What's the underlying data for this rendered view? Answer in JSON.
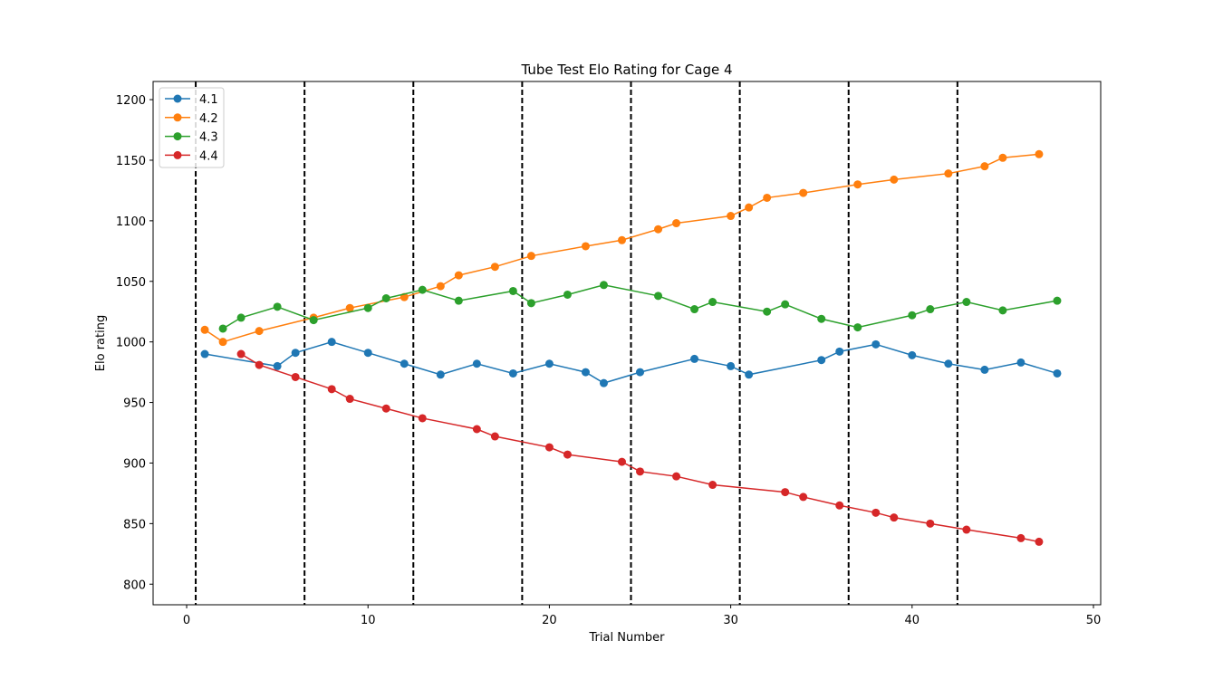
{
  "chart_data": {
    "type": "line",
    "title": "Tube Test Elo Rating for  Cage 4",
    "xlabel": "Trial Number",
    "ylabel": "Elo rating",
    "xlim": [
      -1.85,
      50.4
    ],
    "ylim": [
      783,
      1215
    ],
    "xticks": [
      0,
      10,
      20,
      30,
      40,
      50
    ],
    "yticks": [
      800,
      850,
      900,
      950,
      1000,
      1050,
      1100,
      1150,
      1200
    ],
    "grid": false,
    "legend_position": "top-left",
    "vlines": [
      0.5,
      6.5,
      12.5,
      18.5,
      24.5,
      30.5,
      36.5,
      42.5
    ],
    "series": [
      {
        "name": "4.1",
        "color": "#1f77b4",
        "x": [
          1,
          5,
          6,
          8,
          10,
          12,
          14,
          16,
          18,
          20,
          22,
          23,
          25,
          28,
          30,
          31,
          35,
          36,
          38,
          40,
          42,
          44,
          46,
          48
        ],
        "y": [
          990,
          980,
          991,
          1000,
          991,
          982,
          973,
          982,
          974,
          982,
          975,
          966,
          975,
          986,
          980,
          973,
          985,
          992,
          998,
          989,
          982,
          977,
          983,
          974
        ]
      },
      {
        "name": "4.2",
        "color": "#ff7f0e",
        "x": [
          1,
          2,
          4,
          7,
          9,
          12,
          14,
          15,
          17,
          19,
          22,
          24,
          26,
          27,
          30,
          31,
          32,
          34,
          37,
          39,
          42,
          44,
          45,
          47
        ],
        "y": [
          1010,
          1000,
          1009,
          1020,
          1028,
          1037,
          1046,
          1055,
          1062,
          1071,
          1079,
          1084,
          1093,
          1098,
          1104,
          1111,
          1119,
          1123,
          1130,
          1134,
          1139,
          1145,
          1152,
          1155
        ]
      },
      {
        "name": "4.3",
        "color": "#2ca02c",
        "x": [
          2,
          3,
          5,
          7,
          10,
          11,
          13,
          15,
          18,
          19,
          21,
          23,
          26,
          28,
          29,
          32,
          33,
          35,
          37,
          40,
          41,
          43,
          45,
          48
        ],
        "y": [
          1011,
          1020,
          1029,
          1018,
          1028,
          1036,
          1043,
          1034,
          1042,
          1032,
          1039,
          1047,
          1038,
          1027,
          1033,
          1025,
          1031,
          1019,
          1012,
          1022,
          1027,
          1033,
          1026,
          1034
        ]
      },
      {
        "name": "4.4",
        "color": "#d62728",
        "x": [
          3,
          4,
          6,
          8,
          9,
          11,
          13,
          16,
          17,
          20,
          21,
          24,
          25,
          27,
          29,
          33,
          34,
          36,
          38,
          39,
          41,
          43,
          46,
          47
        ],
        "y": [
          990,
          981,
          971,
          961,
          953,
          945,
          937,
          928,
          922,
          913,
          907,
          901,
          893,
          889,
          882,
          876,
          872,
          865,
          859,
          855,
          850,
          845,
          838,
          835
        ]
      }
    ]
  }
}
